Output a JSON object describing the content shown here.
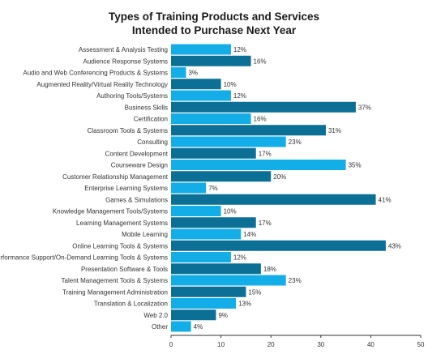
{
  "chart_data": {
    "type": "bar",
    "orientation": "horizontal",
    "title": "Types of Training Products and Services Intended to Purchase Next Year",
    "title_lines": [
      "Types of Training Products and Services",
      "Intended to Purchase Next Year"
    ],
    "categories": [
      "Assessment & Analysis Testing",
      "Audience Response Systems",
      "Audio and Web Conferencing Products & Systems",
      "Augmented Reality/Virtual Reality Technology",
      "Authoring Tools/Systems",
      "Business Skills",
      "Certification",
      "Classroom Tools & Systems",
      "Consulting",
      "Content Development",
      "Courseware Design",
      "Customer Relationship Management",
      "Enterprise Learning Systems",
      "Games & Simulations",
      "Knowledge Management Tools/Systems",
      "Learning Management Systems",
      "Mobile Learning",
      "Online Learning Tools & Systems",
      "Performance Support/On-Demand Learning Tools & Systems",
      "Presentation Software & Tools",
      "Talent Management Tools & Systems",
      "Training Management Administration",
      "Translation & Localization",
      "Web 2.0",
      "Other"
    ],
    "values": [
      12,
      16,
      3,
      10,
      12,
      37,
      16,
      31,
      23,
      17,
      35,
      20,
      7,
      41,
      10,
      17,
      14,
      43,
      12,
      18,
      23,
      15,
      13,
      9,
      4
    ],
    "value_labels": [
      "12%",
      "16%",
      "3%",
      "10%",
      "12%",
      "37%",
      "16%",
      "31%",
      "23%",
      "17%",
      "35%",
      "20%",
      "7%",
      "41%",
      "10%",
      "17%",
      "14%",
      "43%",
      "12%",
      "18%",
      "23%",
      "15%",
      "13%",
      "9%",
      "4%"
    ],
    "xlim": [
      0,
      50
    ],
    "xticks": [
      0,
      10,
      20,
      30,
      40,
      50
    ],
    "xlabel": "",
    "ylabel": "",
    "grid": false,
    "colors": {
      "light": "#13aee8",
      "dark": "#0b6f96"
    }
  }
}
